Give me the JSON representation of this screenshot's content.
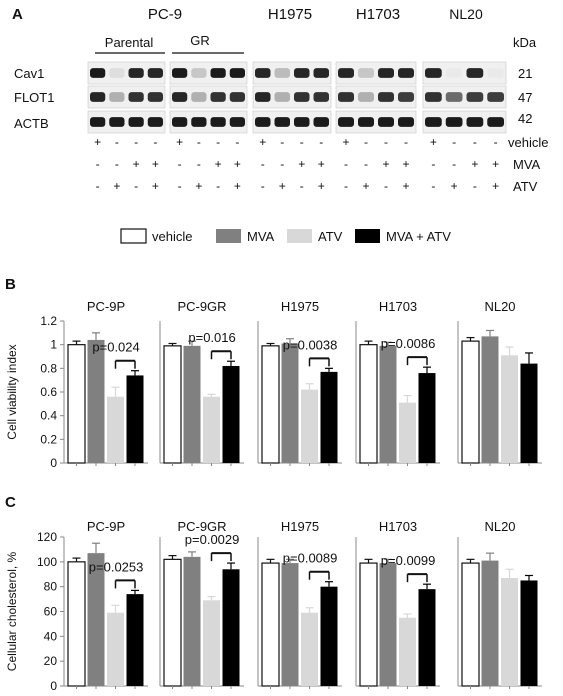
{
  "panel_a": {
    "letter": "A",
    "cell_lines": [
      "PC-9",
      "H1975",
      "H1703",
      "NL20"
    ],
    "subgroups": [
      "Parental",
      "GR"
    ],
    "kda_header": "kDa",
    "rows": [
      {
        "protein": "Cav1",
        "kda": "21"
      },
      {
        "protein": "FLOT1",
        "kda": "47"
      },
      {
        "protein": "ACTB",
        "kda": "42"
      }
    ],
    "treatment_rows": [
      {
        "label": "vehicle",
        "pattern": [
          "+",
          "-",
          "-",
          "-"
        ]
      },
      {
        "label": "MVA",
        "pattern": [
          "-",
          "-",
          "+",
          "+"
        ]
      },
      {
        "label": "ATV",
        "pattern": [
          "-",
          "+",
          "-",
          "+"
        ]
      }
    ],
    "blot_intensity": {
      "Cav1": [
        [
          0.95,
          0.1,
          0.9,
          0.9
        ],
        [
          0.95,
          0.2,
          0.95,
          0.95
        ],
        [
          0.9,
          0.25,
          0.9,
          0.9
        ],
        [
          0.9,
          0.2,
          0.9,
          0.9
        ],
        [
          0.9,
          0.05,
          0.9,
          0.05
        ]
      ],
      "FLOT1": [
        [
          0.9,
          0.3,
          0.85,
          0.85
        ],
        [
          0.9,
          0.3,
          0.85,
          0.85
        ],
        [
          0.9,
          0.3,
          0.85,
          0.85
        ],
        [
          0.85,
          0.3,
          0.85,
          0.8
        ],
        [
          0.85,
          0.6,
          0.8,
          0.8
        ]
      ],
      "ACTB": [
        [
          0.95,
          0.95,
          0.95,
          0.95
        ],
        [
          0.95,
          0.95,
          0.95,
          0.95
        ],
        [
          0.95,
          0.95,
          0.95,
          0.95
        ],
        [
          0.95,
          0.95,
          0.95,
          0.95
        ],
        [
          0.95,
          0.95,
          0.95,
          0.95
        ]
      ]
    }
  },
  "legend": {
    "items": [
      {
        "label": "vehicle",
        "color": "#ffffff"
      },
      {
        "label": "MVA",
        "color": "#808080"
      },
      {
        "label": "ATV",
        "color": "#d8d8d8"
      },
      {
        "label": "MVA + ATV",
        "color": "#000000"
      }
    ]
  },
  "chart_data": [
    {
      "type": "bar",
      "panel": "B",
      "ylabel": "Cell viability index",
      "ylim": [
        0,
        1.2
      ],
      "yticks": [
        "0",
        "0.2",
        "0.4",
        "0.6",
        "0.8",
        "1",
        "1.2"
      ],
      "categories": [
        "vehicle",
        "MVA",
        "ATV",
        "MVA + ATV"
      ],
      "series_colors": [
        "#ffffff",
        "#808080",
        "#d8d8d8",
        "#000000"
      ],
      "groups": [
        {
          "title": "PC-9P",
          "values": [
            1.0,
            1.04,
            0.56,
            0.74
          ],
          "errors": [
            0.03,
            0.06,
            0.08,
            0.04
          ],
          "pvalue": "p=0.024"
        },
        {
          "title": "PC-9GR",
          "values": [
            0.99,
            0.99,
            0.56,
            0.82
          ],
          "errors": [
            0.02,
            0.04,
            0.02,
            0.04
          ],
          "pvalue": "p=0.016"
        },
        {
          "title": "H1975",
          "values": [
            0.99,
            1.01,
            0.62,
            0.77
          ],
          "errors": [
            0.02,
            0.04,
            0.05,
            0.03
          ],
          "pvalue": "p=0.0038"
        },
        {
          "title": "H1703",
          "values": [
            1.0,
            0.99,
            0.51,
            0.76
          ],
          "errors": [
            0.03,
            0.03,
            0.06,
            0.05
          ],
          "pvalue": "p=0.0086"
        },
        {
          "title": "NL20",
          "values": [
            1.03,
            1.07,
            0.91,
            0.84
          ],
          "errors": [
            0.03,
            0.05,
            0.07,
            0.09
          ],
          "pvalue": ""
        }
      ]
    },
    {
      "type": "bar",
      "panel": "C",
      "ylabel": "Cellular cholesterol, %",
      "ylim": [
        0,
        120
      ],
      "yticks": [
        "0",
        "20",
        "40",
        "60",
        "80",
        "100",
        "120"
      ],
      "categories": [
        "vehicle",
        "MVA",
        "ATV",
        "MVA + ATV"
      ],
      "series_colors": [
        "#ffffff",
        "#808080",
        "#d8d8d8",
        "#000000"
      ],
      "groups": [
        {
          "title": "PC-9P",
          "values": [
            100,
            107,
            59,
            74
          ],
          "errors": [
            3,
            8,
            6,
            3
          ],
          "pvalue": "p=0.0253"
        },
        {
          "title": "PC-9GR",
          "values": [
            102,
            104,
            69,
            94
          ],
          "errors": [
            3,
            4,
            3,
            5
          ],
          "pvalue": "p=0.0029"
        },
        {
          "title": "H1975",
          "values": [
            99,
            99,
            59,
            80
          ],
          "errors": [
            3,
            3,
            4,
            4
          ],
          "pvalue": "p=0.0089"
        },
        {
          "title": "H1703",
          "values": [
            99,
            99,
            55,
            78
          ],
          "errors": [
            3,
            3,
            3,
            4
          ],
          "pvalue": "p=0.0099"
        },
        {
          "title": "NL20",
          "values": [
            99,
            101,
            87,
            85
          ],
          "errors": [
            3,
            6,
            7,
            4
          ],
          "pvalue": ""
        }
      ]
    }
  ]
}
